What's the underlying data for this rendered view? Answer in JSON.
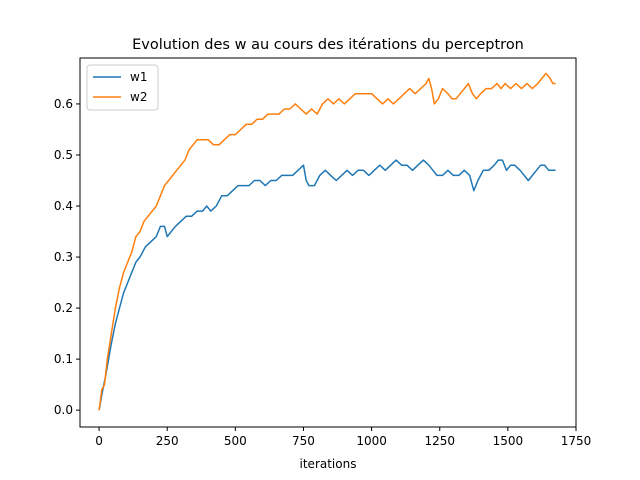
{
  "chart_data": {
    "type": "line",
    "title": "Evolution des w au cours des itérations du perceptron",
    "xlabel": "iterations",
    "ylabel": "",
    "xlim": [
      -70,
      1750
    ],
    "ylim": [
      -0.033,
      0.69
    ],
    "xticks": [
      0,
      250,
      500,
      750,
      1000,
      1250,
      1500,
      1750
    ],
    "yticks": [
      0.0,
      0.1,
      0.2,
      0.3,
      0.4,
      0.5,
      0.6
    ],
    "grid": false,
    "legend_position": "upper-left",
    "series": [
      {
        "name": "w1",
        "color": "#1f77b4",
        "points": [
          [
            0,
            0.0
          ],
          [
            10,
            0.03
          ],
          [
            25,
            0.07
          ],
          [
            45,
            0.13
          ],
          [
            60,
            0.17
          ],
          [
            75,
            0.2
          ],
          [
            90,
            0.23
          ],
          [
            105,
            0.25
          ],
          [
            120,
            0.27
          ],
          [
            135,
            0.29
          ],
          [
            150,
            0.3
          ],
          [
            170,
            0.32
          ],
          [
            190,
            0.33
          ],
          [
            210,
            0.34
          ],
          [
            225,
            0.36
          ],
          [
            240,
            0.36
          ],
          [
            250,
            0.34
          ],
          [
            265,
            0.35
          ],
          [
            280,
            0.36
          ],
          [
            300,
            0.37
          ],
          [
            320,
            0.38
          ],
          [
            340,
            0.38
          ],
          [
            360,
            0.39
          ],
          [
            380,
            0.39
          ],
          [
            395,
            0.4
          ],
          [
            410,
            0.39
          ],
          [
            430,
            0.4
          ],
          [
            450,
            0.42
          ],
          [
            470,
            0.42
          ],
          [
            490,
            0.43
          ],
          [
            510,
            0.44
          ],
          [
            530,
            0.44
          ],
          [
            550,
            0.44
          ],
          [
            570,
            0.45
          ],
          [
            590,
            0.45
          ],
          [
            610,
            0.44
          ],
          [
            630,
            0.45
          ],
          [
            650,
            0.45
          ],
          [
            670,
            0.46
          ],
          [
            690,
            0.46
          ],
          [
            710,
            0.46
          ],
          [
            730,
            0.47
          ],
          [
            750,
            0.48
          ],
          [
            760,
            0.45
          ],
          [
            770,
            0.44
          ],
          [
            790,
            0.44
          ],
          [
            810,
            0.46
          ],
          [
            830,
            0.47
          ],
          [
            850,
            0.46
          ],
          [
            870,
            0.45
          ],
          [
            890,
            0.46
          ],
          [
            910,
            0.47
          ],
          [
            930,
            0.46
          ],
          [
            950,
            0.47
          ],
          [
            970,
            0.47
          ],
          [
            990,
            0.46
          ],
          [
            1010,
            0.47
          ],
          [
            1030,
            0.48
          ],
          [
            1050,
            0.47
          ],
          [
            1070,
            0.48
          ],
          [
            1090,
            0.49
          ],
          [
            1110,
            0.48
          ],
          [
            1130,
            0.48
          ],
          [
            1150,
            0.47
          ],
          [
            1170,
            0.48
          ],
          [
            1190,
            0.49
          ],
          [
            1210,
            0.48
          ],
          [
            1225,
            0.47
          ],
          [
            1240,
            0.46
          ],
          [
            1260,
            0.46
          ],
          [
            1280,
            0.47
          ],
          [
            1300,
            0.46
          ],
          [
            1320,
            0.46
          ],
          [
            1340,
            0.47
          ],
          [
            1360,
            0.46
          ],
          [
            1375,
            0.43
          ],
          [
            1390,
            0.45
          ],
          [
            1410,
            0.47
          ],
          [
            1430,
            0.47
          ],
          [
            1450,
            0.48
          ],
          [
            1465,
            0.49
          ],
          [
            1480,
            0.49
          ],
          [
            1495,
            0.47
          ],
          [
            1510,
            0.48
          ],
          [
            1525,
            0.48
          ],
          [
            1545,
            0.47
          ],
          [
            1560,
            0.46
          ],
          [
            1575,
            0.45
          ],
          [
            1590,
            0.46
          ],
          [
            1605,
            0.47
          ],
          [
            1620,
            0.48
          ],
          [
            1635,
            0.48
          ],
          [
            1650,
            0.47
          ],
          [
            1665,
            0.47
          ],
          [
            1675,
            0.47
          ]
        ]
      },
      {
        "name": "w2",
        "color": "#ff7f0e",
        "points": [
          [
            0,
            0.0
          ],
          [
            10,
            0.04
          ],
          [
            20,
            0.05
          ],
          [
            30,
            0.1
          ],
          [
            45,
            0.15
          ],
          [
            60,
            0.2
          ],
          [
            75,
            0.24
          ],
          [
            90,
            0.27
          ],
          [
            105,
            0.29
          ],
          [
            120,
            0.31
          ],
          [
            135,
            0.34
          ],
          [
            150,
            0.35
          ],
          [
            165,
            0.37
          ],
          [
            180,
            0.38
          ],
          [
            195,
            0.39
          ],
          [
            210,
            0.4
          ],
          [
            225,
            0.42
          ],
          [
            240,
            0.44
          ],
          [
            255,
            0.45
          ],
          [
            270,
            0.46
          ],
          [
            285,
            0.47
          ],
          [
            300,
            0.48
          ],
          [
            315,
            0.49
          ],
          [
            330,
            0.51
          ],
          [
            345,
            0.52
          ],
          [
            360,
            0.53
          ],
          [
            380,
            0.53
          ],
          [
            400,
            0.53
          ],
          [
            420,
            0.52
          ],
          [
            440,
            0.52
          ],
          [
            460,
            0.53
          ],
          [
            480,
            0.54
          ],
          [
            500,
            0.54
          ],
          [
            520,
            0.55
          ],
          [
            540,
            0.56
          ],
          [
            560,
            0.56
          ],
          [
            580,
            0.57
          ],
          [
            600,
            0.57
          ],
          [
            620,
            0.58
          ],
          [
            640,
            0.58
          ],
          [
            660,
            0.58
          ],
          [
            680,
            0.59
          ],
          [
            700,
            0.59
          ],
          [
            720,
            0.6
          ],
          [
            740,
            0.59
          ],
          [
            760,
            0.58
          ],
          [
            780,
            0.59
          ],
          [
            800,
            0.58
          ],
          [
            820,
            0.6
          ],
          [
            840,
            0.61
          ],
          [
            860,
            0.6
          ],
          [
            880,
            0.61
          ],
          [
            900,
            0.6
          ],
          [
            920,
            0.61
          ],
          [
            940,
            0.62
          ],
          [
            960,
            0.62
          ],
          [
            980,
            0.62
          ],
          [
            1000,
            0.62
          ],
          [
            1020,
            0.61
          ],
          [
            1040,
            0.6
          ],
          [
            1060,
            0.61
          ],
          [
            1080,
            0.6
          ],
          [
            1100,
            0.61
          ],
          [
            1120,
            0.62
          ],
          [
            1140,
            0.63
          ],
          [
            1160,
            0.62
          ],
          [
            1180,
            0.63
          ],
          [
            1200,
            0.64
          ],
          [
            1210,
            0.65
          ],
          [
            1220,
            0.63
          ],
          [
            1230,
            0.6
          ],
          [
            1245,
            0.61
          ],
          [
            1260,
            0.63
          ],
          [
            1280,
            0.62
          ],
          [
            1295,
            0.61
          ],
          [
            1310,
            0.61
          ],
          [
            1325,
            0.62
          ],
          [
            1340,
            0.63
          ],
          [
            1355,
            0.64
          ],
          [
            1370,
            0.62
          ],
          [
            1385,
            0.61
          ],
          [
            1400,
            0.62
          ],
          [
            1420,
            0.63
          ],
          [
            1440,
            0.63
          ],
          [
            1460,
            0.64
          ],
          [
            1475,
            0.63
          ],
          [
            1490,
            0.64
          ],
          [
            1510,
            0.63
          ],
          [
            1530,
            0.64
          ],
          [
            1550,
            0.63
          ],
          [
            1570,
            0.64
          ],
          [
            1590,
            0.63
          ],
          [
            1610,
            0.64
          ],
          [
            1625,
            0.65
          ],
          [
            1640,
            0.66
          ],
          [
            1655,
            0.65
          ],
          [
            1665,
            0.64
          ],
          [
            1675,
            0.64
          ]
        ]
      }
    ]
  }
}
